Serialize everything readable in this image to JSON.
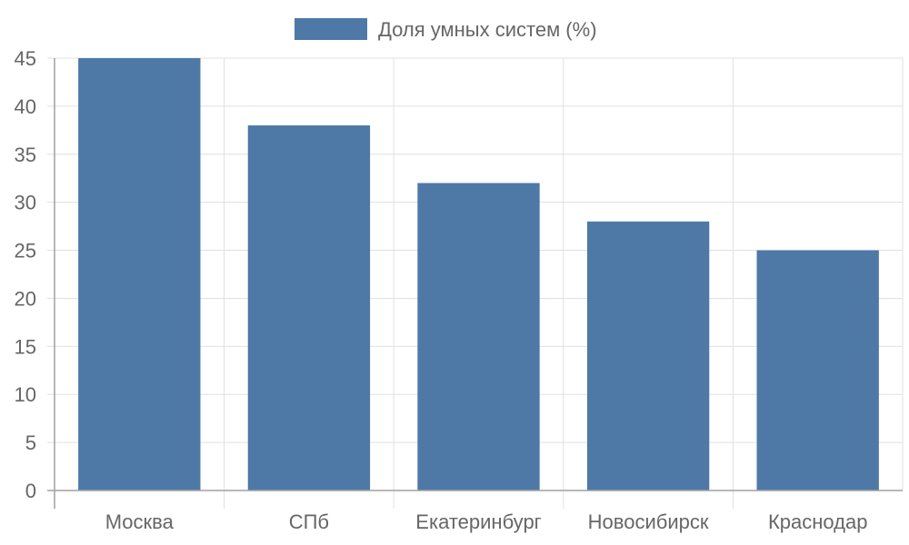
{
  "chart_data": {
    "type": "bar",
    "categories": [
      "Москва",
      "СПб",
      "Екатеринбург",
      "Новосибирск",
      "Краснодар"
    ],
    "series": [
      {
        "name": "Доля умных систем (%)",
        "values": [
          45,
          38,
          32,
          28,
          25
        ],
        "color": "#4e79a7"
      }
    ],
    "ylim": [
      0,
      45
    ],
    "yticks": [
      0,
      5,
      10,
      15,
      20,
      25,
      30,
      35,
      40,
      45
    ],
    "grid": true,
    "legend_position": "top-center",
    "colors": {
      "grid": "#e0e0e0",
      "axis": "#a0a0a0",
      "text": "#666666"
    }
  }
}
